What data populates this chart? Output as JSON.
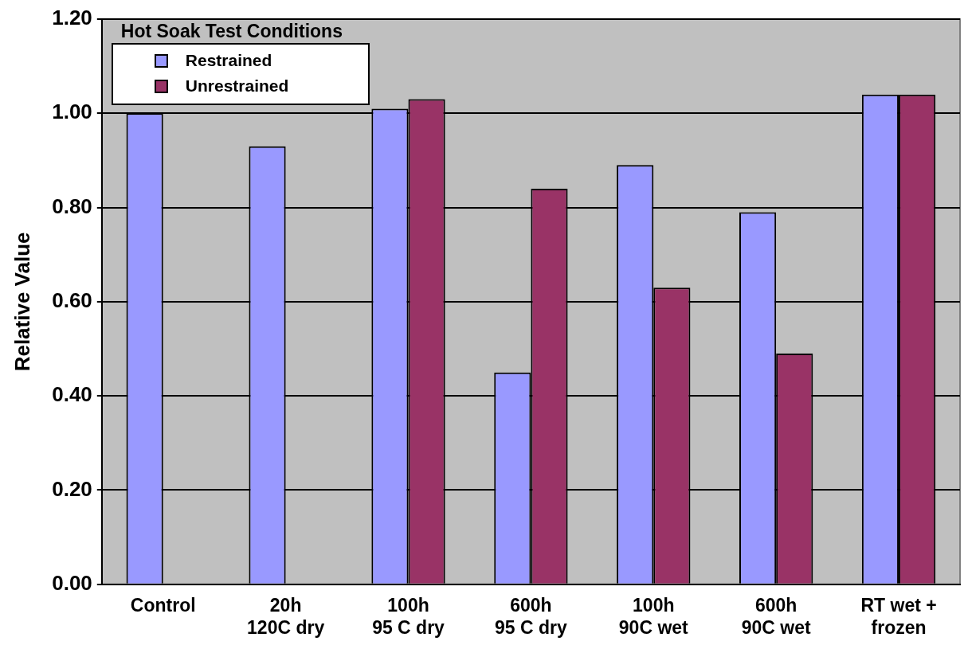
{
  "chart_data": {
    "type": "bar",
    "ylabel": "Relative Value",
    "legend_title": "Hot Soak Test Conditions",
    "categories": [
      "Control",
      "20h\n120C dry",
      "100h\n95 C dry",
      "600h\n95 C dry",
      "100h\n90C wet",
      "600h\n90C wet",
      "RT wet +\nfrozen"
    ],
    "series": [
      {
        "name": "Restrained",
        "color": "#9999ff",
        "values": [
          1.0,
          0.93,
          1.01,
          0.45,
          0.89,
          0.79,
          1.04
        ]
      },
      {
        "name": "Unrestrained",
        "color": "#993366",
        "values": [
          null,
          null,
          1.03,
          0.84,
          0.63,
          0.49,
          1.04
        ]
      }
    ],
    "ylim": [
      0,
      1.2
    ],
    "yticks": [
      {
        "value": 0,
        "label": "0.00"
      },
      {
        "value": 0.2,
        "label": "0.20"
      },
      {
        "value": 0.4,
        "label": "0.40"
      },
      {
        "value": 0.6,
        "label": "0.60"
      },
      {
        "value": 0.8,
        "label": "0.80"
      },
      {
        "value": 1,
        "label": "1.00"
      },
      {
        "value": 1.2,
        "label": "1.20"
      }
    ],
    "grid": "y",
    "legend": "top left"
  }
}
